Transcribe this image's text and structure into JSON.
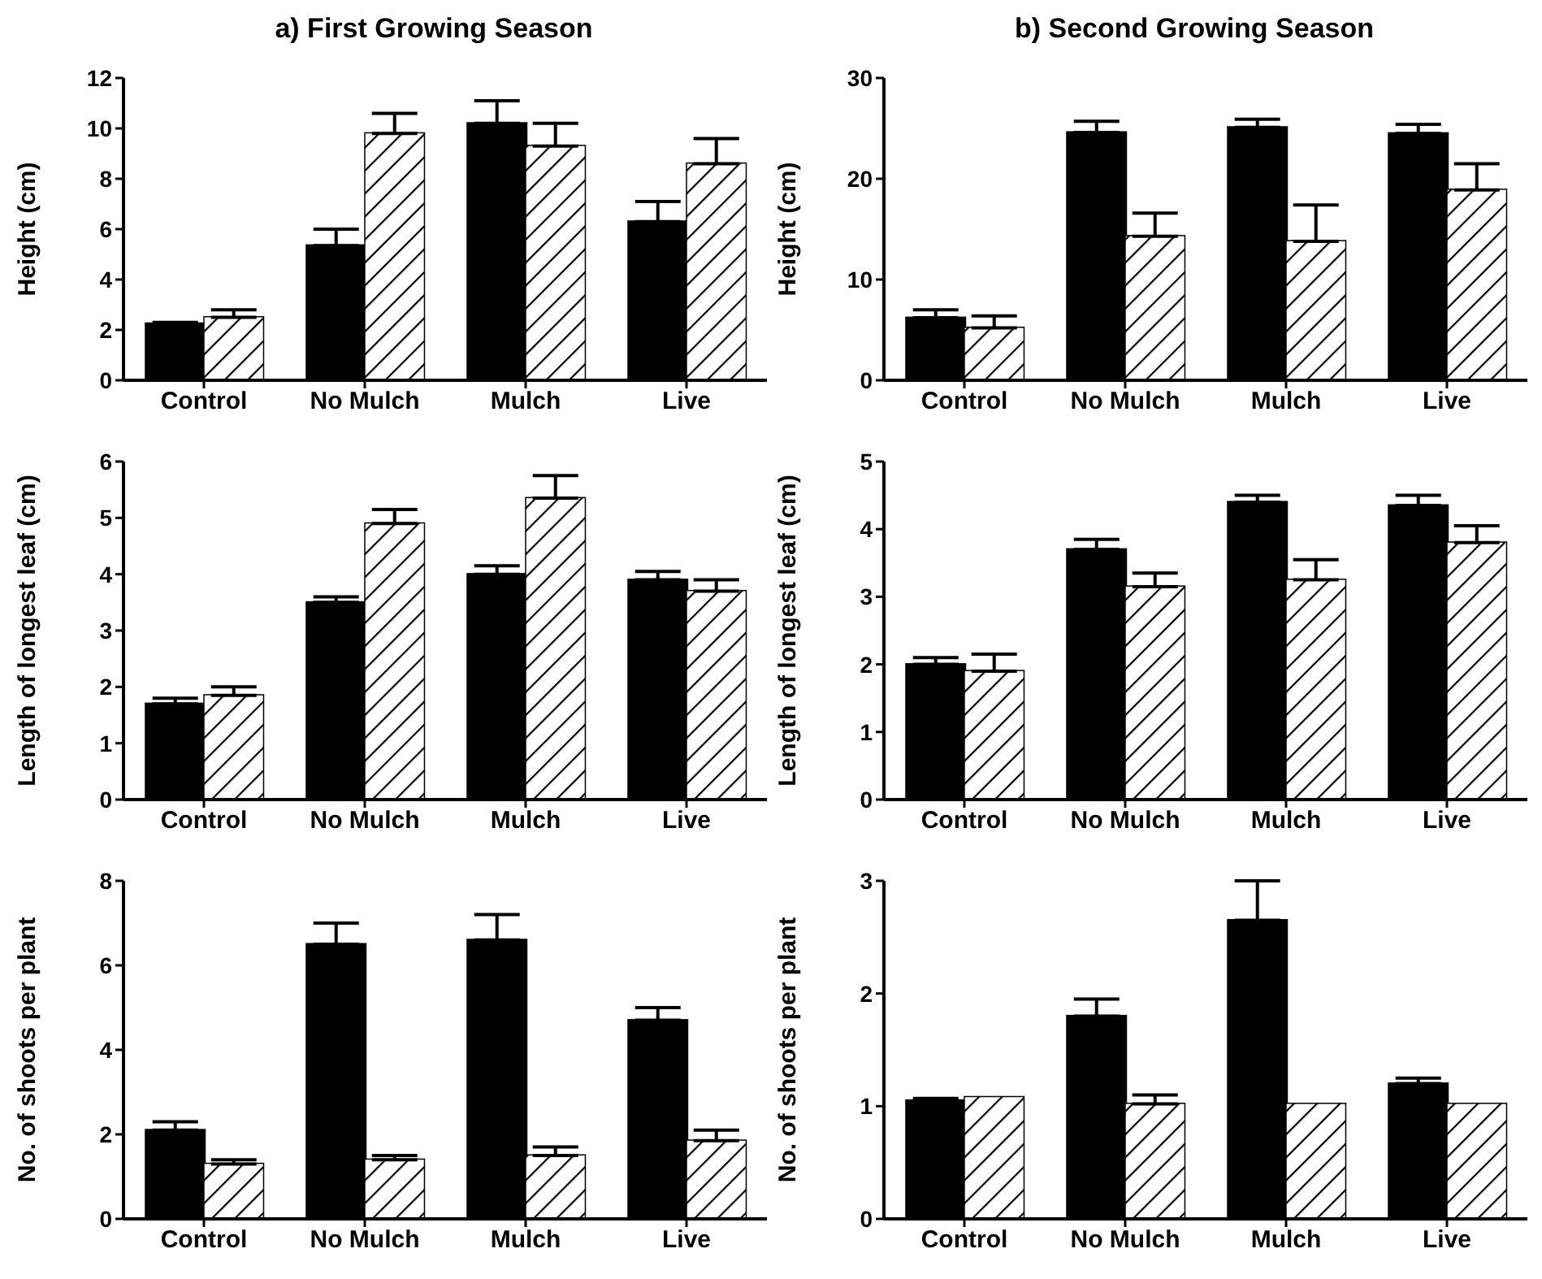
{
  "chart_data": [
    {
      "type": "bar",
      "title": "a) First Growing Season",
      "ylabel": "Height (cm)",
      "categories": [
        "Control",
        "No Mulch",
        "Mulch",
        "Live"
      ],
      "ylim": [
        0,
        12
      ],
      "yticks": [
        0,
        2,
        4,
        6,
        8,
        10,
        12
      ],
      "series": [
        {
          "color": "#000000",
          "values": [
            2.25,
            5.35,
            10.2,
            6.3
          ],
          "errors": [
            [
              2.25,
              2.3
            ],
            [
              5.35,
              6.0
            ],
            [
              10.2,
              11.1
            ],
            [
              6.3,
              7.1
            ]
          ]
        },
        {
          "color": "#ffffff",
          "values": [
            2.5,
            9.8,
            9.3,
            8.6
          ],
          "errors": [
            [
              2.5,
              2.8
            ],
            [
              9.8,
              10.6
            ],
            [
              9.3,
              10.2
            ],
            [
              8.6,
              9.6
            ]
          ]
        }
      ]
    },
    {
      "type": "bar",
      "title": "b) Second Growing Season",
      "ylabel": "Height (cm)",
      "categories": [
        "Control",
        "No Mulch",
        "Mulch",
        "Live"
      ],
      "ylim": [
        0,
        30
      ],
      "yticks": [
        0,
        10,
        20,
        30
      ],
      "series": [
        {
          "color": "#000000",
          "values": [
            6.2,
            24.6,
            25.1,
            24.5
          ],
          "errors": [
            [
              6.2,
              7.0
            ],
            [
              24.6,
              25.7
            ],
            [
              25.1,
              25.9
            ],
            [
              24.5,
              25.4
            ]
          ]
        },
        {
          "color": "#ffffff",
          "values": [
            5.2,
            14.3,
            13.8,
            18.9
          ],
          "errors": [
            [
              5.2,
              6.4
            ],
            [
              14.3,
              16.6
            ],
            [
              13.8,
              17.4
            ],
            [
              18.9,
              21.5
            ]
          ]
        }
      ]
    },
    {
      "type": "bar",
      "ylabel": "Length of longest leaf (cm)",
      "categories": [
        "Control",
        "No Mulch",
        "Mulch",
        "Live"
      ],
      "ylim": [
        0,
        6
      ],
      "yticks": [
        0,
        1,
        2,
        3,
        4,
        5,
        6
      ],
      "series": [
        {
          "color": "#000000",
          "values": [
            1.7,
            3.5,
            4.0,
            3.9
          ],
          "errors": [
            [
              1.7,
              1.8
            ],
            [
              3.5,
              3.6
            ],
            [
              4.0,
              4.15
            ],
            [
              3.9,
              4.05
            ]
          ]
        },
        {
          "color": "#ffffff",
          "values": [
            1.85,
            4.9,
            5.35,
            3.7
          ],
          "errors": [
            [
              1.85,
              2.0
            ],
            [
              4.9,
              5.15
            ],
            [
              5.35,
              5.75
            ],
            [
              3.7,
              3.9
            ]
          ]
        }
      ]
    },
    {
      "type": "bar",
      "ylabel": "Length of longest leaf (cm)",
      "categories": [
        "Control",
        "No Mulch",
        "Mulch",
        "Live"
      ],
      "ylim": [
        0,
        5
      ],
      "yticks": [
        0,
        1,
        2,
        3,
        4,
        5
      ],
      "series": [
        {
          "color": "#000000",
          "values": [
            2.0,
            3.7,
            4.4,
            4.35
          ],
          "errors": [
            [
              2.0,
              2.1
            ],
            [
              3.7,
              3.85
            ],
            [
              4.4,
              4.5
            ],
            [
              4.35,
              4.5
            ]
          ]
        },
        {
          "color": "#ffffff",
          "values": [
            1.9,
            3.15,
            3.25,
            3.8
          ],
          "errors": [
            [
              1.9,
              2.15
            ],
            [
              3.15,
              3.35
            ],
            [
              3.25,
              3.55
            ],
            [
              3.8,
              4.05
            ]
          ]
        }
      ]
    },
    {
      "type": "bar",
      "ylabel": "No. of shoots per plant",
      "categories": [
        "Control",
        "No Mulch",
        "Mulch",
        "Live"
      ],
      "ylim": [
        0,
        8
      ],
      "yticks": [
        0,
        2,
        4,
        6,
        8
      ],
      "series": [
        {
          "color": "#000000",
          "values": [
            2.1,
            6.5,
            6.6,
            4.7
          ],
          "errors": [
            [
              2.1,
              2.3
            ],
            [
              6.5,
              7.0
            ],
            [
              6.6,
              7.2
            ],
            [
              4.7,
              5.0
            ]
          ]
        },
        {
          "color": "#ffffff",
          "values": [
            1.3,
            1.4,
            1.5,
            1.85
          ],
          "errors": [
            [
              1.3,
              1.4
            ],
            [
              1.4,
              1.5
            ],
            [
              1.5,
              1.7
            ],
            [
              1.85,
              2.1
            ]
          ]
        }
      ]
    },
    {
      "type": "bar",
      "ylabel": "No. of shoots per plant",
      "categories": [
        "Control",
        "No Mulch",
        "Mulch",
        "Live"
      ],
      "ylim": [
        0,
        3
      ],
      "yticks": [
        0,
        1,
        2,
        3
      ],
      "series": [
        {
          "color": "#000000",
          "values": [
            1.05,
            1.8,
            2.65,
            1.2
          ],
          "errors": [
            [
              1.05,
              1.07
            ],
            [
              1.8,
              1.95
            ],
            [
              2.65,
              3.0
            ],
            [
              1.2,
              1.25
            ]
          ]
        },
        {
          "color": "#ffffff",
          "values": [
            1.08,
            1.02,
            1.02,
            1.02
          ],
          "errors": [
            null,
            [
              1.02,
              1.1
            ],
            null,
            null
          ]
        }
      ]
    }
  ]
}
